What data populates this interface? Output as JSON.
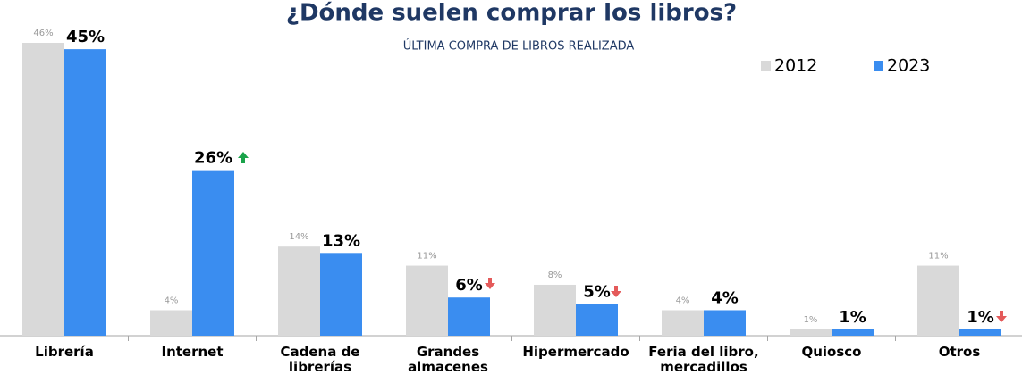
{
  "chart_data": {
    "type": "bar",
    "title": "¿Dónde suelen comprar los libros?",
    "subtitle": "ÚLTIMA COMPRA DE LIBROS REALIZADA",
    "categories": [
      "Librería",
      "Internet",
      "Cadena de\nlibrerías",
      "Grandes\nalmacenes",
      "Hipermercado",
      "Feria del libro,\nmercadillos",
      "Quiosco",
      "Otros"
    ],
    "series": [
      {
        "name": "2012",
        "color": "#d9d9d9",
        "values": [
          46,
          4,
          14,
          11,
          8,
          4,
          1,
          11
        ],
        "value_labels": [
          "46%",
          "4%",
          "14%",
          "11%",
          "8%",
          "4%",
          "1%",
          "11%"
        ]
      },
      {
        "name": "2023",
        "color": "#3a8df0",
        "values": [
          45,
          26,
          13,
          6,
          5,
          4,
          1,
          1
        ],
        "value_labels": [
          "45%",
          "26%",
          "13%",
          "6%",
          "5%",
          "4%",
          "1%",
          "1%"
        ]
      }
    ],
    "legend": "top-right"
  }
}
